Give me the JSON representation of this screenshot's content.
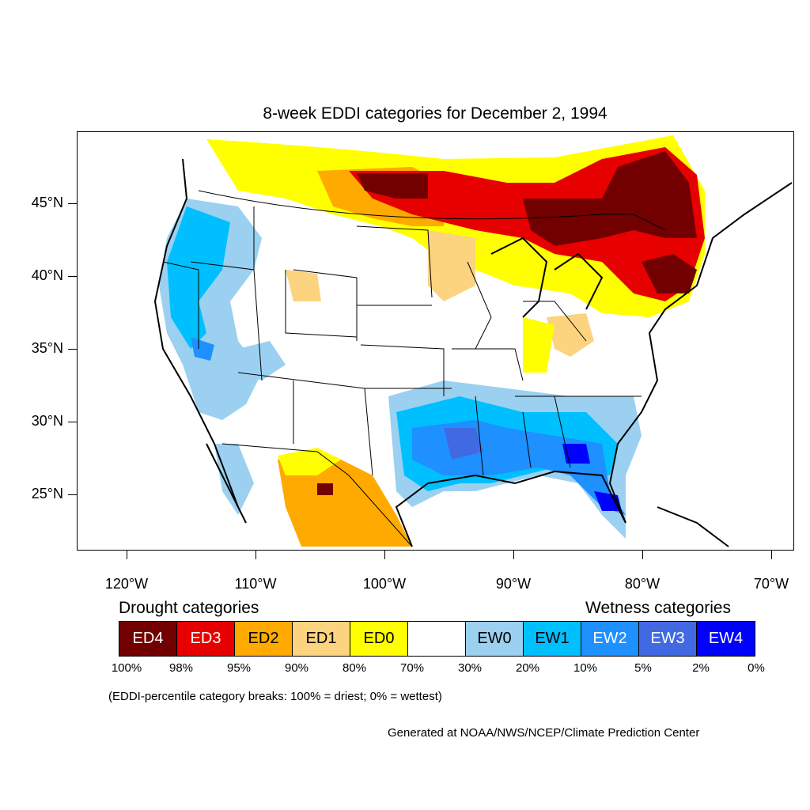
{
  "title": "8-week EDDI categories for December 2, 1994",
  "lat_labels": [
    "45°N",
    "40°N",
    "35°N",
    "30°N",
    "25°N"
  ],
  "lon_labels": [
    "120°W",
    "110°W",
    "100°W",
    "90°W",
    "80°W",
    "70°W"
  ],
  "legend": {
    "drought_heading": "Drought categories",
    "wetness_heading": "Wetness categories",
    "categories": [
      {
        "label": "ED4",
        "color": "#730000"
      },
      {
        "label": "ED3",
        "color": "#e60000"
      },
      {
        "label": "ED2",
        "color": "#ffaa00"
      },
      {
        "label": "ED1",
        "color": "#fcd37f"
      },
      {
        "label": "ED0",
        "color": "#ffff00"
      },
      {
        "label": "",
        "color": "#ffffff"
      },
      {
        "label": "EW0",
        "color": "#9bd0f0"
      },
      {
        "label": "EW1",
        "color": "#00bfff"
      },
      {
        "label": "EW2",
        "color": "#1e90ff"
      },
      {
        "label": "EW3",
        "color": "#4169e1"
      },
      {
        "label": "EW4",
        "color": "#0000ff"
      }
    ],
    "breaks": [
      "100%",
      "98%",
      "95%",
      "90%",
      "80%",
      "70%",
      "30%",
      "20%",
      "10%",
      "5%",
      "2%",
      "0%"
    ]
  },
  "note": "(EDDI-percentile category breaks: 100% = driest; 0% = wettest)",
  "credit": "Generated at NOAA/NWS/NCEP/Climate Prediction Center"
}
